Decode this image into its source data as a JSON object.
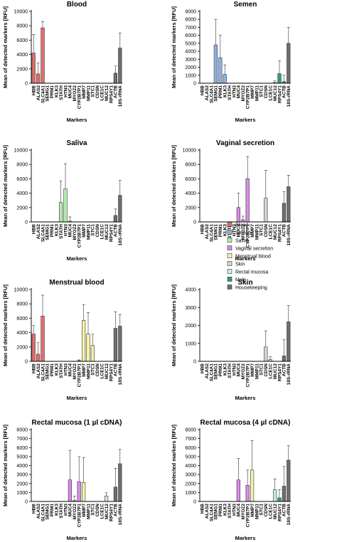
{
  "legend": {
    "names": [
      "Blood",
      "Semen",
      "Saliva",
      "Vaginal secretion",
      "Menstrual blood",
      "Skin",
      "Rectal mucosa",
      "Male",
      "Housekeeping"
    ],
    "colors": [
      "#e46c6c",
      "#8db3e2",
      "#b5ecb0",
      "#d98be8",
      "#f7f3a8",
      "#d4d4d4",
      "#cdeee0",
      "#2aa36a",
      "#6e6e6e"
    ]
  },
  "chart_data": [
    {
      "type": "bar",
      "title": "Blood",
      "y_label": "Mean of detected markers [RFU]",
      "x_label": "Markers",
      "categories": [
        "HBB",
        "ALAS2",
        "SLC4A1",
        "SEMG1",
        "PRM1",
        "KLK3",
        "STATH",
        "HTN3",
        "MUC4",
        "MYOZ2",
        "CYP2B7P1",
        "MMP7",
        "MMP11",
        "STC1",
        "CDSN",
        "LCE1C",
        "MUC12",
        "RPS4Y1",
        "ACTB",
        "18S-rRNA"
      ],
      "colors": [
        "#e46c6c",
        "#e46c6c",
        "#e46c6c",
        "#8db3e2",
        "#8db3e2",
        "#8db3e2",
        "#b5ecb0",
        "#b5ecb0",
        "#d98be8",
        "#d98be8",
        "#d98be8",
        "#f7f3a8",
        "#f7f3a8",
        "#f7f3a8",
        "#d4d4d4",
        "#d4d4d4",
        "#cdeee0",
        "#2aa36a",
        "#6e6e6e",
        "#6e6e6e"
      ],
      "values": [
        4200,
        1300,
        7700,
        0,
        0,
        0,
        0,
        0,
        0,
        0,
        0,
        0,
        0,
        0,
        0,
        0,
        0,
        0,
        1400,
        4900
      ],
      "errors": [
        2600,
        1500,
        900,
        0,
        0,
        0,
        0,
        0,
        0,
        0,
        0,
        0,
        0,
        0,
        0,
        0,
        0,
        0,
        1000,
        2100
      ],
      "ylim": [
        0,
        10000
      ],
      "yticks": [
        0,
        2000,
        4000,
        6000,
        8000,
        10000
      ]
    },
    {
      "type": "bar",
      "title": "Semen",
      "y_label": "Mean of detected markers [RFU]",
      "x_label": "Markers",
      "categories": [
        "HBB",
        "ALAS2",
        "SLC4A1",
        "SEMG1",
        "PRM1",
        "KLK3",
        "STATH",
        "HTN3",
        "MUC4",
        "MYOZ2",
        "CYP2B7P1",
        "MMP7",
        "MMP11",
        "STC1",
        "CDSN",
        "LCE1C",
        "MUC12",
        "RPS4Y1",
        "ACTB",
        "18S-rRNA"
      ],
      "colors": [
        "#e46c6c",
        "#e46c6c",
        "#e46c6c",
        "#8db3e2",
        "#8db3e2",
        "#8db3e2",
        "#b5ecb0",
        "#b5ecb0",
        "#d98be8",
        "#d98be8",
        "#d98be8",
        "#f7f3a8",
        "#f7f3a8",
        "#f7f3a8",
        "#d4d4d4",
        "#d4d4d4",
        "#cdeee0",
        "#2aa36a",
        "#6e6e6e",
        "#6e6e6e"
      ],
      "values": [
        0,
        0,
        0,
        4800,
        3200,
        1100,
        0,
        0,
        0,
        0,
        0,
        0,
        0,
        0,
        0,
        0,
        100,
        1200,
        200,
        5000
      ],
      "errors": [
        0,
        0,
        0,
        3200,
        2800,
        1200,
        0,
        0,
        0,
        0,
        0,
        0,
        0,
        0,
        0,
        0,
        200,
        1600,
        800,
        2000
      ],
      "ylim": [
        0,
        9000
      ],
      "yticks": [
        0,
        1000,
        2000,
        3000,
        4000,
        5000,
        6000,
        7000,
        8000,
        9000
      ]
    },
    {
      "type": "bar",
      "title": "Saliva",
      "y_label": "Mean of detected markers [RFU]",
      "x_label": "Markers",
      "categories": [
        "HBB",
        "ALAS2",
        "SLC4A1",
        "SEMG1",
        "PRM1",
        "KLK3",
        "STATH",
        "HTN3",
        "MUC4",
        "MYOZ2",
        "CYP2B7P1",
        "MMP7",
        "MMP11",
        "STC1",
        "CDSN",
        "LCE1C",
        "MUC12",
        "RPS4Y1",
        "ACTB",
        "18S-rRNA"
      ],
      "colors": [
        "#e46c6c",
        "#e46c6c",
        "#e46c6c",
        "#8db3e2",
        "#8db3e2",
        "#8db3e2",
        "#b5ecb0",
        "#b5ecb0",
        "#d98be8",
        "#d98be8",
        "#d98be8",
        "#f7f3a8",
        "#f7f3a8",
        "#f7f3a8",
        "#d4d4d4",
        "#d4d4d4",
        "#cdeee0",
        "#2aa36a",
        "#6e6e6e",
        "#6e6e6e"
      ],
      "values": [
        0,
        0,
        0,
        0,
        0,
        0,
        2700,
        4600,
        100,
        0,
        0,
        0,
        0,
        0,
        0,
        0,
        0,
        0,
        900,
        3700
      ],
      "errors": [
        0,
        0,
        0,
        0,
        0,
        0,
        3000,
        3500,
        600,
        0,
        0,
        0,
        0,
        0,
        0,
        0,
        0,
        0,
        900,
        2100
      ],
      "ylim": [
        0,
        10000
      ],
      "yticks": [
        0,
        2000,
        4000,
        6000,
        8000,
        10000
      ]
    },
    {
      "type": "bar",
      "title": "Vaginal secretion",
      "y_label": "Mean of detected markers [RFU]",
      "x_label": "Markers",
      "categories": [
        "HBB",
        "ALAS2",
        "SLC4A1",
        "SEMG1",
        "PRM1",
        "KLK3",
        "STATH",
        "HTN3",
        "MUC4",
        "MYOZ2",
        "CYP2B7P1",
        "MMP7",
        "MMP11",
        "STC1",
        "CDSN",
        "LCE1C",
        "MUC12",
        "RPS4Y1",
        "ACTB",
        "18S-rRNA"
      ],
      "colors": [
        "#e46c6c",
        "#e46c6c",
        "#e46c6c",
        "#8db3e2",
        "#8db3e2",
        "#8db3e2",
        "#b5ecb0",
        "#b5ecb0",
        "#d98be8",
        "#d98be8",
        "#d98be8",
        "#f7f3a8",
        "#f7f3a8",
        "#f7f3a8",
        "#d4d4d4",
        "#d4d4d4",
        "#cdeee0",
        "#2aa36a",
        "#6e6e6e",
        "#6e6e6e"
      ],
      "values": [
        0,
        0,
        0,
        0,
        0,
        0,
        0,
        0,
        2000,
        300,
        6000,
        0,
        0,
        0,
        3300,
        0,
        0,
        0,
        2600,
        4900
      ],
      "errors": [
        0,
        0,
        0,
        0,
        0,
        0,
        0,
        0,
        2000,
        500,
        3100,
        0,
        0,
        0,
        3900,
        0,
        0,
        0,
        1600,
        1600
      ],
      "ylim": [
        0,
        10000
      ],
      "yticks": [
        0,
        2000,
        4000,
        6000,
        8000,
        10000
      ]
    },
    {
      "type": "bar",
      "title": "Menstrual blood",
      "y_label": "Mean of detected markers [RFU]",
      "x_label": "Markers",
      "categories": [
        "HBB",
        "ALAS2",
        "SLC4A1",
        "SEMG1",
        "PRM1",
        "KLK3",
        "STATH",
        "HTN3",
        "MUC4",
        "MYOZ2",
        "CYP2B7P1",
        "MMP7",
        "MMP11",
        "STC1",
        "CDSN",
        "LCE1C",
        "MUC12",
        "RPS4Y1",
        "ACTB",
        "18S-rRNA"
      ],
      "colors": [
        "#e46c6c",
        "#e46c6c",
        "#e46c6c",
        "#8db3e2",
        "#8db3e2",
        "#8db3e2",
        "#b5ecb0",
        "#b5ecb0",
        "#d98be8",
        "#d98be8",
        "#d98be8",
        "#f7f3a8",
        "#f7f3a8",
        "#f7f3a8",
        "#d4d4d4",
        "#d4d4d4",
        "#cdeee0",
        "#2aa36a",
        "#6e6e6e",
        "#6e6e6e"
      ],
      "values": [
        3800,
        1000,
        6300,
        0,
        0,
        0,
        0,
        0,
        0,
        0,
        100,
        5700,
        3800,
        2200,
        0,
        0,
        0,
        0,
        4600,
        4900
      ],
      "errors": [
        1200,
        1600,
        2900,
        0,
        0,
        0,
        0,
        0,
        0,
        0,
        100,
        2200,
        3000,
        1600,
        0,
        0,
        0,
        0,
        2300,
        1600
      ],
      "ylim": [
        0,
        10000
      ],
      "yticks": [
        0,
        2000,
        4000,
        6000,
        8000,
        10000
      ]
    },
    {
      "type": "bar",
      "title": "Skin",
      "y_label": "Mean of detected markers [RFU]",
      "x_label": "Markers",
      "categories": [
        "HBB",
        "ALAS2",
        "SLC4A1",
        "SEMG1",
        "PRM1",
        "KLK3",
        "STATH",
        "HTN3",
        "MUC4",
        "MYOZ2",
        "CYP2B7P1",
        "MMP7",
        "MMP11",
        "STC1",
        "CDSN",
        "LCE1C",
        "MUC12",
        "RPS4Y1",
        "ACTB",
        "18S-rRNA"
      ],
      "colors": [
        "#e46c6c",
        "#e46c6c",
        "#e46c6c",
        "#8db3e2",
        "#8db3e2",
        "#8db3e2",
        "#b5ecb0",
        "#b5ecb0",
        "#d98be8",
        "#d98be8",
        "#d98be8",
        "#f7f3a8",
        "#f7f3a8",
        "#f7f3a8",
        "#d4d4d4",
        "#d4d4d4",
        "#cdeee0",
        "#2aa36a",
        "#6e6e6e",
        "#6e6e6e"
      ],
      "values": [
        0,
        0,
        0,
        0,
        0,
        0,
        0,
        0,
        0,
        0,
        0,
        0,
        0,
        0,
        800,
        100,
        0,
        0,
        300,
        2200
      ],
      "errors": [
        0,
        0,
        0,
        0,
        0,
        0,
        0,
        0,
        0,
        0,
        0,
        0,
        0,
        0,
        900,
        150,
        0,
        0,
        900,
        900
      ],
      "ylim": [
        0,
        4000
      ],
      "yticks": [
        0,
        1000,
        2000,
        3000,
        4000
      ]
    },
    {
      "type": "bar",
      "title": "Rectal mucosa (1 µl cDNA)",
      "y_label": "Mean of detected markers [RFU]",
      "x_label": "Markers",
      "categories": [
        "HBB",
        "ALAS2",
        "SLC4A1",
        "SEMG1",
        "PRM1",
        "KLK3",
        "STATH",
        "HTN3",
        "MUC4",
        "MYOZ2",
        "CYP2B7P1",
        "MMP7",
        "MMP11",
        "STC1",
        "CDSN",
        "LCE1C",
        "MUC12",
        "RPS4Y1",
        "ACTB",
        "18S-rRNA"
      ],
      "colors": [
        "#e46c6c",
        "#e46c6c",
        "#e46c6c",
        "#8db3e2",
        "#8db3e2",
        "#8db3e2",
        "#b5ecb0",
        "#b5ecb0",
        "#d98be8",
        "#d98be8",
        "#d98be8",
        "#f7f3a8",
        "#f7f3a8",
        "#f7f3a8",
        "#d4d4d4",
        "#d4d4d4",
        "#cdeee0",
        "#2aa36a",
        "#6e6e6e",
        "#6e6e6e"
      ],
      "values": [
        0,
        0,
        0,
        0,
        0,
        0,
        0,
        0,
        2400,
        100,
        2200,
        2100,
        0,
        0,
        0,
        0,
        600,
        0,
        1600,
        4200
      ],
      "errors": [
        0,
        0,
        0,
        0,
        0,
        0,
        0,
        0,
        3300,
        500,
        2800,
        2800,
        0,
        0,
        0,
        0,
        400,
        0,
        2100,
        1600
      ],
      "ylim": [
        0,
        8000
      ],
      "yticks": [
        0,
        1000,
        2000,
        3000,
        4000,
        5000,
        6000,
        7000,
        8000
      ]
    },
    {
      "type": "bar",
      "title": "Rectal mucosa (4 µl cDNA)",
      "y_label": "Mean of detected markers [RFU]",
      "x_label": "Markers",
      "categories": [
        "HBB",
        "ALAS2",
        "SLC4A1",
        "SEMG1",
        "PRM1",
        "KLK3",
        "STATH",
        "HTN3",
        "MUC4",
        "MYOZ2",
        "CYP2B7P1",
        "MMP7",
        "MMP11",
        "STC1",
        "CDSN",
        "LCE1C",
        "MUC12",
        "RPS4Y1",
        "ACTB",
        "18S-rRNA"
      ],
      "colors": [
        "#e46c6c",
        "#e46c6c",
        "#e46c6c",
        "#8db3e2",
        "#8db3e2",
        "#8db3e2",
        "#b5ecb0",
        "#b5ecb0",
        "#d98be8",
        "#d98be8",
        "#d98be8",
        "#f7f3a8",
        "#f7f3a8",
        "#f7f3a8",
        "#d4d4d4",
        "#d4d4d4",
        "#cdeee0",
        "#2aa36a",
        "#6e6e6e",
        "#6e6e6e"
      ],
      "values": [
        0,
        0,
        0,
        0,
        0,
        0,
        0,
        0,
        2400,
        0,
        1800,
        3500,
        0,
        0,
        0,
        0,
        1300,
        400,
        1700,
        4600
      ],
      "errors": [
        0,
        0,
        0,
        0,
        0,
        0,
        0,
        0,
        2400,
        0,
        1700,
        3300,
        0,
        0,
        0,
        0,
        1200,
        900,
        2200,
        1600
      ],
      "ylim": [
        0,
        8000
      ],
      "yticks": [
        0,
        1000,
        2000,
        3000,
        4000,
        5000,
        6000,
        7000,
        8000
      ]
    }
  ]
}
